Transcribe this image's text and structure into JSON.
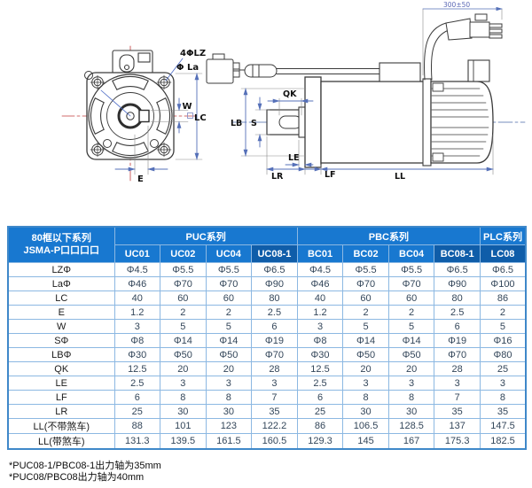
{
  "diagram": {
    "front_view": {
      "label_holes": "4ΦLZ",
      "label_bolt_circle": "Φ La",
      "label_key_width": "W",
      "label_frame": "LC",
      "label_key_offset": "E"
    },
    "side_view": {
      "label_cable_length": "300±50",
      "label_key_length": "QK",
      "label_shaft_dia": "S",
      "label_pilot_dia": "LB",
      "label_le": "LE",
      "label_shaft_length": "LR",
      "label_flange_thickness": "LF",
      "label_body_length": "LL"
    }
  },
  "table": {
    "corner_line1": "80框以下系列",
    "corner_line2": "JSMA-P口口口口",
    "groups": [
      {
        "label": "PUC系列",
        "span": 4
      },
      {
        "label": "PBC系列",
        "span": 4
      },
      {
        "label": "PLC系列",
        "span": 1
      }
    ],
    "columns": [
      {
        "label": "UC01",
        "highlight": false
      },
      {
        "label": "UC02",
        "highlight": false
      },
      {
        "label": "UC04",
        "highlight": false
      },
      {
        "label": "UC08-1",
        "highlight": true
      },
      {
        "label": "BC01",
        "highlight": false
      },
      {
        "label": "BC02",
        "highlight": false
      },
      {
        "label": "BC04",
        "highlight": false
      },
      {
        "label": "BC08-1",
        "highlight": true
      },
      {
        "label": "LC08",
        "highlight": true
      }
    ],
    "rows": [
      {
        "label": "LZΦ",
        "values": [
          "Φ4.5",
          "Φ5.5",
          "Φ5.5",
          "Φ6.5",
          "Φ4.5",
          "Φ5.5",
          "Φ5.5",
          "Φ6.5",
          "Φ6.5"
        ]
      },
      {
        "label": "LaΦ",
        "values": [
          "Φ46",
          "Φ70",
          "Φ70",
          "Φ90",
          "Φ46",
          "Φ70",
          "Φ70",
          "Φ90",
          "Φ100"
        ]
      },
      {
        "label": "LC",
        "values": [
          "40",
          "60",
          "60",
          "80",
          "40",
          "60",
          "60",
          "80",
          "86"
        ]
      },
      {
        "label": "E",
        "values": [
          "1.2",
          "2",
          "2",
          "2.5",
          "1.2",
          "2",
          "2",
          "2.5",
          "2"
        ]
      },
      {
        "label": "W",
        "values": [
          "3",
          "5",
          "5",
          "6",
          "3",
          "5",
          "5",
          "6",
          "5"
        ]
      },
      {
        "label": "SΦ",
        "values": [
          "Φ8",
          "Φ14",
          "Φ14",
          "Φ19",
          "Φ8",
          "Φ14",
          "Φ14",
          "Φ19",
          "Φ16"
        ]
      },
      {
        "label": "LBΦ",
        "values": [
          "Φ30",
          "Φ50",
          "Φ50",
          "Φ70",
          "Φ30",
          "Φ50",
          "Φ50",
          "Φ70",
          "Φ80"
        ]
      },
      {
        "label": "QK",
        "values": [
          "12.5",
          "20",
          "20",
          "28",
          "12.5",
          "20",
          "20",
          "28",
          "25"
        ]
      },
      {
        "label": "LE",
        "values": [
          "2.5",
          "3",
          "3",
          "3",
          "2.5",
          "3",
          "3",
          "3",
          "3"
        ]
      },
      {
        "label": "LF",
        "values": [
          "6",
          "8",
          "8",
          "7",
          "6",
          "8",
          "8",
          "7",
          "8"
        ]
      },
      {
        "label": "LR",
        "values": [
          "25",
          "30",
          "30",
          "35",
          "25",
          "30",
          "30",
          "35",
          "35"
        ]
      },
      {
        "label": "LL(不带煞车)",
        "values": [
          "88",
          "101",
          "123",
          "122.2",
          "86",
          "106.5",
          "128.5",
          "137",
          "147.5"
        ]
      },
      {
        "label": "LL(带煞车)",
        "values": [
          "131.3",
          "139.5",
          "161.5",
          "160.5",
          "129.3",
          "145",
          "167",
          "175.3",
          "182.5"
        ]
      }
    ]
  },
  "footnotes": [
    "*PUC08-1/PBC08-1出力轴为35mm",
    "*PUC08/PBC08出力轴为40mm"
  ],
  "colors": {
    "header_blue": "#1878d0",
    "header_dark": "#0f5da9",
    "grid_border": "#8cb8e2",
    "value_text": "#33465a",
    "centerline_red": "#c23b3b",
    "dimension_blue": "#5570b8"
  }
}
